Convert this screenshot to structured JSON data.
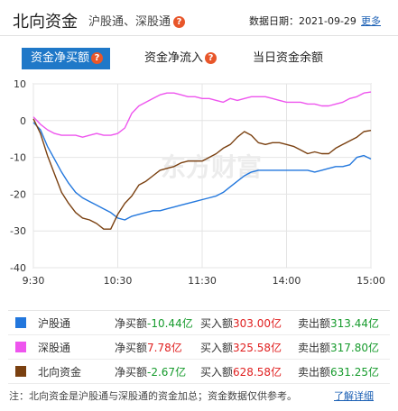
{
  "header": {
    "title": "北向资金",
    "subtitle": "沪股通、深股通",
    "date_label": "数据日期：2021-09-29",
    "more_link": "更多"
  },
  "tabs": [
    {
      "label": "资金净买额",
      "active": true,
      "has_help": true
    },
    {
      "label": "资金净流入",
      "active": false,
      "has_help": true
    },
    {
      "label": "当日资金余额",
      "active": false,
      "has_help": false
    }
  ],
  "watermark": "东方财富",
  "chart_data": {
    "type": "line",
    "x_ticks": [
      "9:30",
      "10:30",
      "11:30",
      "14:00",
      "15:00"
    ],
    "y_ticks": [
      10,
      0,
      -10,
      -20,
      -30,
      -40
    ],
    "ylim": [
      -40,
      10
    ],
    "grid": true,
    "x": [
      0,
      5,
      10,
      15,
      20,
      25,
      30,
      35,
      40,
      45,
      50,
      55,
      60,
      65,
      70,
      75,
      80,
      85,
      90,
      95,
      100,
      105,
      110,
      115,
      120,
      125,
      130,
      135,
      140,
      145,
      150,
      155,
      160,
      165,
      170,
      175,
      180,
      185,
      190,
      195,
      200,
      205,
      210,
      215,
      220,
      225,
      230,
      235,
      240
    ],
    "series": [
      {
        "name": "沪股通",
        "color": "#2277dd",
        "values": [
          -0.5,
          -2.5,
          -7,
          -10.5,
          -14,
          -17,
          -19.5,
          -21,
          -22,
          -23,
          -24,
          -25,
          -26.5,
          -27,
          -26,
          -25.5,
          -25,
          -24.5,
          -24.5,
          -24,
          -23.5,
          -23,
          -22.5,
          -22,
          -21.5,
          -21,
          -20.5,
          -19.5,
          -18,
          -16.5,
          -15,
          -14,
          -13.5,
          -13.5,
          -13.5,
          -13.5,
          -13.5,
          -13.5,
          -13.5,
          -13.5,
          -14,
          -13.5,
          -13,
          -12.5,
          -12.5,
          -12,
          -10,
          -9.5,
          -10.44
        ]
      },
      {
        "name": "深股通",
        "color": "#ee55ee",
        "values": [
          1,
          -1,
          -2.5,
          -3.5,
          -4,
          -4,
          -4,
          -4.5,
          -4,
          -3.5,
          -4,
          -4,
          -3.5,
          -2,
          2,
          4,
          5,
          6,
          7,
          7.5,
          7.5,
          7,
          6.5,
          6.5,
          6,
          6,
          5.5,
          5,
          6,
          5.5,
          6,
          6.5,
          6.5,
          6.5,
          6,
          5.5,
          5,
          5,
          5,
          4.5,
          4.5,
          4,
          4,
          4.5,
          5,
          6,
          6.5,
          7.5,
          7.78
        ]
      },
      {
        "name": "北向资金",
        "color": "#7a4010",
        "values": [
          0.5,
          -3.5,
          -9.5,
          -14.5,
          -19.5,
          -22.5,
          -25,
          -26.5,
          -27,
          -28,
          -29.5,
          -29.5,
          -25.5,
          -22.5,
          -20.5,
          -17.5,
          -16.5,
          -15,
          -13.5,
          -13,
          -12.5,
          -11.5,
          -11,
          -11,
          -11,
          -10,
          -9,
          -7.5,
          -6.5,
          -4.5,
          -3,
          -4,
          -6,
          -6.5,
          -6,
          -6,
          -6.5,
          -7,
          -8,
          -9,
          -8.5,
          -9,
          -9,
          -7.5,
          -6.5,
          -5.5,
          -4.5,
          -3,
          -2.67
        ]
      }
    ]
  },
  "legend": [
    {
      "name": "沪股通",
      "color": "#2277dd",
      "net_label": "净买额",
      "net_value": "-10.44亿",
      "net_color": "green",
      "buy_label": "买入额",
      "buy_value": "303.00亿",
      "sell_label": "卖出额",
      "sell_value": "313.44亿"
    },
    {
      "name": "深股通",
      "color": "#ee55ee",
      "net_label": "净买额",
      "net_value": "7.78亿",
      "net_color": "red",
      "buy_label": "买入额",
      "buy_value": "325.58亿",
      "sell_label": "卖出额",
      "sell_value": "317.80亿"
    },
    {
      "name": "北向资金",
      "color": "#7a4010",
      "net_label": "净买额",
      "net_value": "-2.67亿",
      "net_color": "green",
      "buy_label": "买入额",
      "buy_value": "628.58亿",
      "sell_label": "卖出额",
      "sell_value": "631.25亿"
    }
  ],
  "note": {
    "text": "注：北向资金是沪股通与深股通的资金加总；资金数据仅供参考。",
    "link": "了解详细"
  }
}
